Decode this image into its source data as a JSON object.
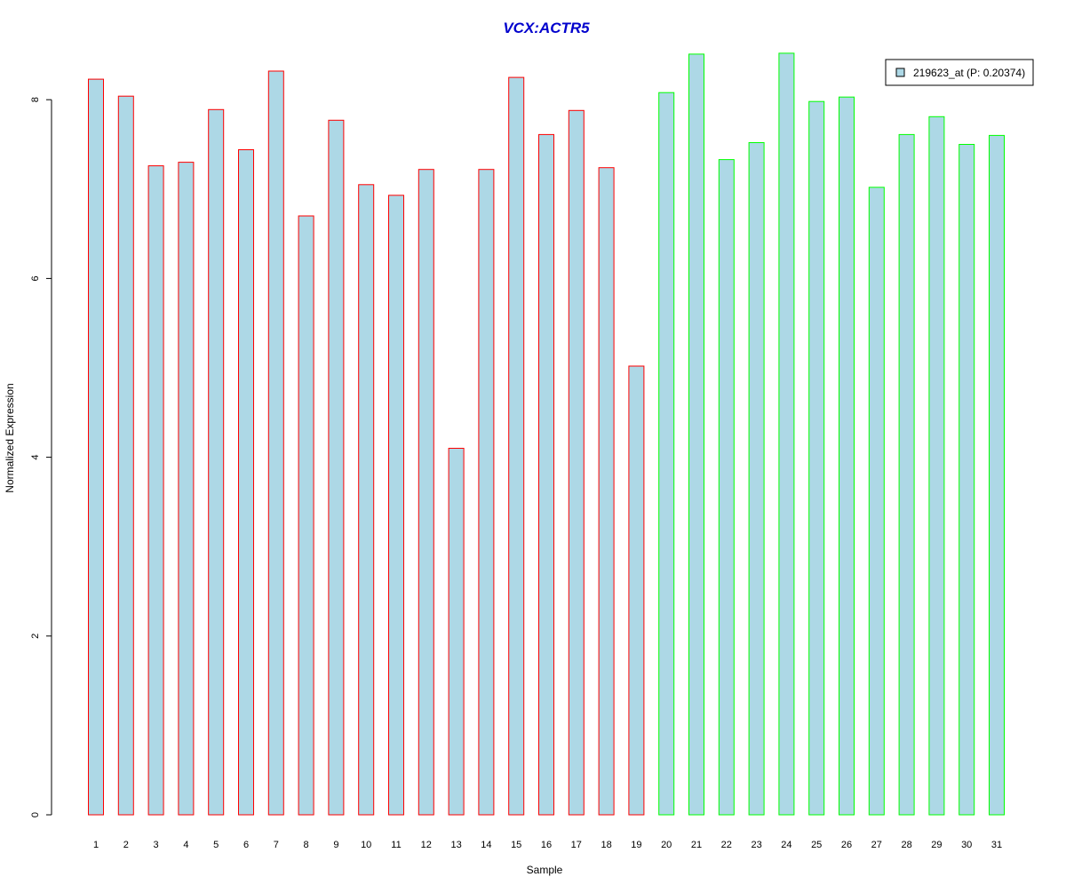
{
  "chart_data": {
    "type": "bar",
    "title": "VCX:ACTR5",
    "xlabel": "Sample",
    "ylabel": "Normalized Expression",
    "ylim": [
      0,
      8.52
    ],
    "yticks": [
      "0",
      "2",
      "4",
      "6",
      "8"
    ],
    "grid": false,
    "legend_position": "top-right",
    "categories": [
      "1",
      "2",
      "3",
      "4",
      "5",
      "6",
      "7",
      "8",
      "9",
      "10",
      "11",
      "12",
      "13",
      "14",
      "15",
      "16",
      "17",
      "18",
      "19",
      "20",
      "21",
      "22",
      "23",
      "24",
      "25",
      "26",
      "27",
      "28",
      "29",
      "30",
      "31"
    ],
    "series": [
      {
        "name": "219623_at (P: 0.20374)",
        "values": [
          8.23,
          8.04,
          7.26,
          7.3,
          7.89,
          7.44,
          8.32,
          6.7,
          7.77,
          7.05,
          6.93,
          7.22,
          4.1,
          7.22,
          8.25,
          7.61,
          7.88,
          7.24,
          5.02,
          8.08,
          8.51,
          7.33,
          7.52,
          8.52,
          7.98,
          8.03,
          7.02,
          7.61,
          7.81,
          7.5,
          7.6
        ]
      }
    ],
    "groups": [
      {
        "samples": [
          1,
          19
        ],
        "border_color": "#ff0000"
      },
      {
        "samples": [
          20,
          31
        ],
        "border_color": "#00ff00"
      }
    ]
  },
  "colors": {
    "bar_fill": "#add8e6",
    "title": "#0000cd",
    "axis": "#000000"
  }
}
